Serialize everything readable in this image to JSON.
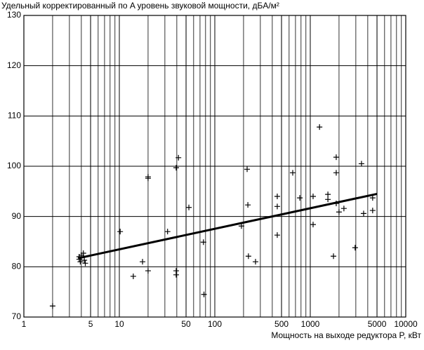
{
  "chart_data": {
    "type": "scatter",
    "title": "Удельный корректированный по A уровень звуковой мощности, дБA/м²",
    "x_label": "Мощность на выходе редуктора P, кВт",
    "log_x": true,
    "grid": true,
    "minor_grid": true,
    "color": "#000000",
    "xlim": [
      1,
      10000
    ],
    "ylim": [
      70,
      130
    ],
    "xticks": [
      1,
      5,
      10,
      50,
      100,
      500,
      1000,
      5000,
      10000
    ],
    "yticks": [
      70,
      80,
      90,
      100,
      110,
      120,
      130
    ],
    "x": [
      2,
      3.8,
      3.8,
      4.0,
      4.2,
      4.3,
      4.4,
      3.9,
      10.2,
      17.5,
      14,
      20,
      20,
      20,
      32,
      39.4,
      39.4,
      41.6,
      39.4,
      53.5,
      76,
      77,
      190,
      218,
      222,
      225,
      267,
      451,
      451,
      451,
      655,
      777,
      1070,
      1070,
      1250,
      1530,
      1530,
      1750,
      1870,
      1870,
      1870,
      2000,
      2250,
      2950,
      3440,
      3620,
      4500,
      4500
    ],
    "values": [
      72.2,
      82,
      81.5,
      82.3,
      82.7,
      81.3,
      80.7,
      81.0,
      87.0,
      81.0,
      78.1,
      79.2,
      97.9,
      97.6,
      87.0,
      79.2,
      78.4,
      101.7,
      99.7,
      91.8,
      84.9,
      74.5,
      88.1,
      99.4,
      92.3,
      82.1,
      81.0,
      94.0,
      92.0,
      86.3,
      98.7,
      93.7,
      94.0,
      88.4,
      107.8,
      94.4,
      93.4,
      82.1,
      101.8,
      98.7,
      92.6,
      90.9,
      91.6,
      83.8,
      100.5,
      90.6,
      91.2,
      93.7
    ],
    "trend": {
      "x": [
        3.7,
        5000
      ],
      "values": [
        81.7,
        94.5
      ]
    }
  }
}
